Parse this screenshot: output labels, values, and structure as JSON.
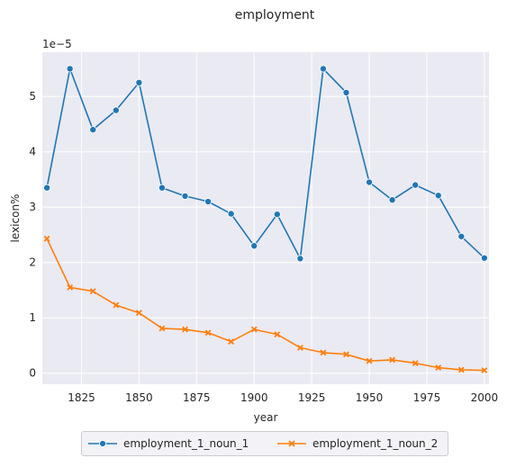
{
  "chart_data": {
    "type": "line",
    "title": "employment",
    "xlabel": "year",
    "ylabel": "lexicon%",
    "y_offset_label": "1e−5",
    "xlim": [
      1808,
      2002
    ],
    "ylim": [
      -2e-06,
      5.8e-05
    ],
    "x_ticks": [
      1825,
      1850,
      1875,
      1900,
      1925,
      1950,
      1975,
      2000
    ],
    "y_ticks": [
      0,
      1e-05,
      2e-05,
      3e-05,
      4e-05,
      5e-05
    ],
    "y_tick_labels": [
      "0",
      "1",
      "2",
      "3",
      "4",
      "5"
    ],
    "grid": true,
    "legend_position": "bottom-center",
    "x": [
      1810,
      1820,
      1830,
      1840,
      1850,
      1860,
      1870,
      1880,
      1890,
      1900,
      1910,
      1920,
      1930,
      1940,
      1950,
      1960,
      1970,
      1980,
      1990,
      2000
    ],
    "series": [
      {
        "name": "employment_1_noun_1",
        "color": "#1f77b4",
        "marker": "circle",
        "values": [
          3.35e-05,
          5.5e-05,
          4.4e-05,
          4.75e-05,
          5.25e-05,
          3.35e-05,
          3.2e-05,
          3.1e-05,
          2.88e-05,
          2.3e-05,
          2.87e-05,
          2.07e-05,
          5.5e-05,
          5.07e-05,
          3.45e-05,
          3.13e-05,
          3.4e-05,
          3.21e-05,
          2.47e-05,
          2.08e-05
        ]
      },
      {
        "name": "employment_1_noun_2",
        "color": "#ff7f0e",
        "marker": "x",
        "values": [
          2.43e-05,
          1.55e-05,
          1.48e-05,
          1.23e-05,
          1.09e-05,
          8.1e-06,
          7.9e-06,
          7.3e-06,
          5.7e-06,
          7.9e-06,
          7e-06,
          4.6e-06,
          3.7e-06,
          3.4e-06,
          2.2e-06,
          2.4e-06,
          1.8e-06,
          1e-06,
          6e-07,
          5e-07
        ]
      }
    ]
  }
}
